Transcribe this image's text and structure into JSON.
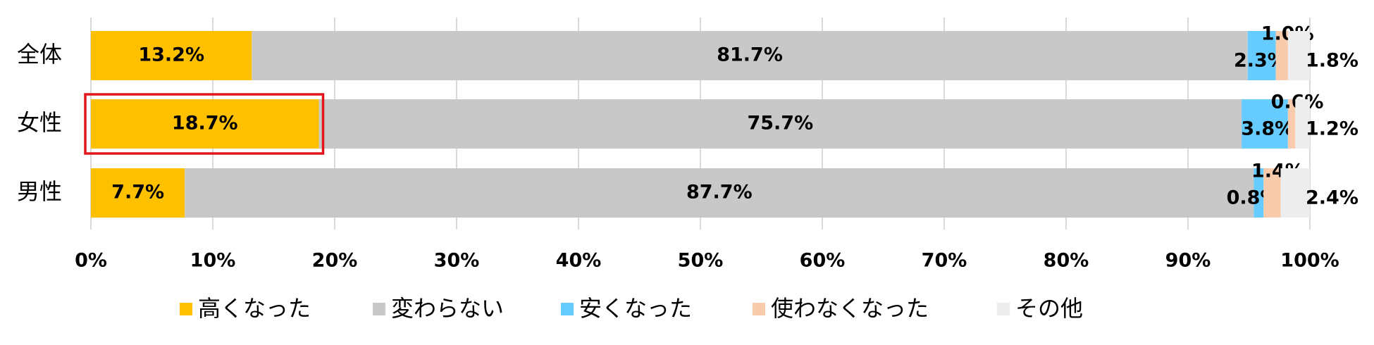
{
  "chart_data": {
    "type": "stacked-barh",
    "categories": [
      "全体",
      "女性",
      "男性"
    ],
    "series": [
      {
        "name": "高くなった",
        "color": "#FFC000",
        "values": [
          13.2,
          18.7,
          7.7
        ],
        "value_labels": [
          "13.2%",
          "18.7%",
          "7.7%"
        ]
      },
      {
        "name": "変わらない",
        "color": "#C8C8C8",
        "values": [
          81.7,
          75.7,
          87.7
        ],
        "value_labels": [
          "81.7%",
          "75.7%",
          "87.7%"
        ]
      },
      {
        "name": "安くなった",
        "color": "#66CCFF",
        "values": [
          2.3,
          3.8,
          0.8
        ],
        "value_labels": [
          "2.3%",
          "3.8%",
          "0.8%"
        ]
      },
      {
        "name": "使わなくなった",
        "color": "#F8CBAD",
        "values": [
          1.0,
          0.6,
          1.4
        ],
        "value_labels": [
          "1.0%",
          "0.6%",
          "1.4%"
        ]
      },
      {
        "name": "その他",
        "color": "#EDEDED",
        "values": [
          1.8,
          1.2,
          2.4
        ],
        "value_labels": [
          "1.8%",
          "1.2%",
          "2.4%"
        ]
      }
    ],
    "xlim": [
      0,
      100
    ],
    "xticks": [
      {
        "value": 0,
        "label": "0%"
      },
      {
        "value": 10,
        "label": "10%"
      },
      {
        "value": 20,
        "label": "20%"
      },
      {
        "value": 30,
        "label": "30%"
      },
      {
        "value": 40,
        "label": "40%"
      },
      {
        "value": 50,
        "label": "50%"
      },
      {
        "value": 60,
        "label": "60%"
      },
      {
        "value": 70,
        "label": "70%"
      },
      {
        "value": 80,
        "label": "80%"
      },
      {
        "value": 90,
        "label": "90%"
      },
      {
        "value": 100,
        "label": "100%"
      }
    ],
    "grid": true,
    "legend": "bottom"
  }
}
